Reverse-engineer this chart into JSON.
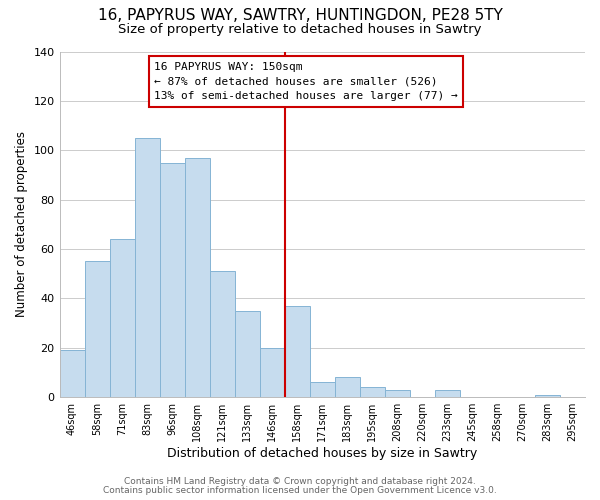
{
  "title": "16, PAPYRUS WAY, SAWTRY, HUNTINGDON, PE28 5TY",
  "subtitle": "Size of property relative to detached houses in Sawtry",
  "xlabel": "Distribution of detached houses by size in Sawtry",
  "ylabel": "Number of detached properties",
  "bar_labels": [
    "46sqm",
    "58sqm",
    "71sqm",
    "83sqm",
    "96sqm",
    "108sqm",
    "121sqm",
    "133sqm",
    "146sqm",
    "158sqm",
    "171sqm",
    "183sqm",
    "195sqm",
    "208sqm",
    "220sqm",
    "233sqm",
    "245sqm",
    "258sqm",
    "270sqm",
    "283sqm",
    "295sqm"
  ],
  "bar_values": [
    19,
    55,
    64,
    105,
    95,
    97,
    51,
    35,
    20,
    37,
    6,
    8,
    4,
    3,
    0,
    3,
    0,
    0,
    0,
    1,
    0
  ],
  "bar_color": "#c6dcee",
  "bar_edge_color": "#85b4d4",
  "vline_x": 8.5,
  "vline_color": "#cc0000",
  "annotation_title": "16 PAPYRUS WAY: 150sqm",
  "annotation_line1": "← 87% of detached houses are smaller (526)",
  "annotation_line2": "13% of semi-detached houses are larger (77) →",
  "annotation_box_color": "#ffffff",
  "annotation_border_color": "#cc0000",
  "footer1": "Contains HM Land Registry data © Crown copyright and database right 2024.",
  "footer2": "Contains public sector information licensed under the Open Government Licence v3.0.",
  "ylim": [
    0,
    140
  ],
  "title_fontsize": 11,
  "subtitle_fontsize": 9.5,
  "xlabel_fontsize": 9,
  "ylabel_fontsize": 8.5,
  "tick_fontsize": 7,
  "footer_fontsize": 6.5,
  "background_color": "#ffffff",
  "grid_color": "#cccccc"
}
